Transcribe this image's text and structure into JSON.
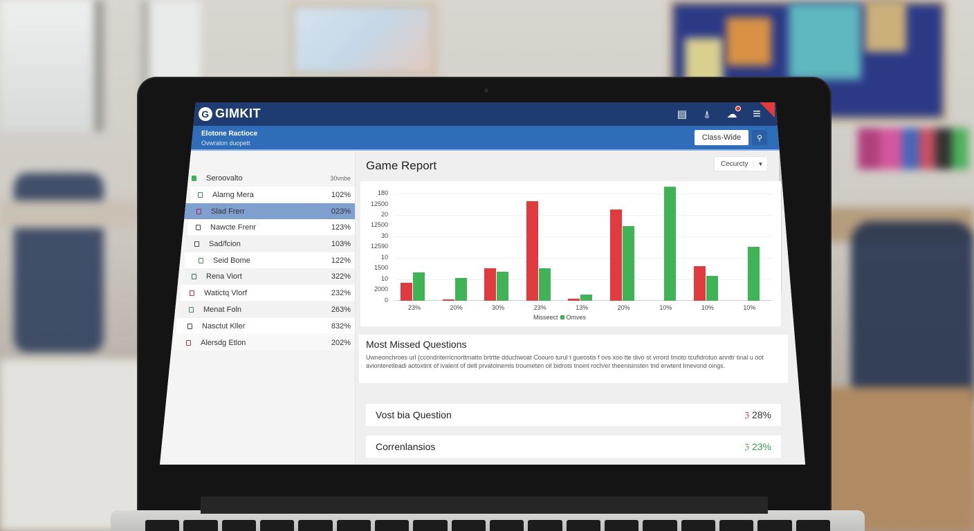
{
  "app": {
    "brand": "GIMKIT",
    "brand_logo": "G"
  },
  "header": {
    "icons": [
      {
        "name": "reports-icon",
        "glyph": "▤"
      },
      {
        "name": "bell-icon",
        "glyph": "⍋"
      },
      {
        "name": "cloud-notifications-icon",
        "glyph": "☁"
      },
      {
        "name": "menu-icon",
        "glyph": "≡"
      }
    ]
  },
  "subheader": {
    "title": "Elotone Ractioce",
    "subtitle": "Ovwralon duopett",
    "scope_button": "Class-Wide",
    "profile_icon": "⚲"
  },
  "sidebar": {
    "header": {
      "name": "Seroovalto",
      "value": "30vnbe",
      "icon_color": "#3fb356"
    },
    "items": [
      {
        "name": "Alarng Mera",
        "value": "102%",
        "icon_color": "#3a8f4d"
      },
      {
        "name": "Slad Frerr",
        "value": "023%",
        "icon_color": "#9b2d6b",
        "selected": true
      },
      {
        "name": "Nawcte Frenr",
        "value": "123%",
        "icon_color": "#333333"
      },
      {
        "name": "Sad/fcion",
        "value": "103%",
        "icon_color": "#333333"
      },
      {
        "name": "Seid Bome",
        "value": "122%",
        "icon_color": "#3a8f4d"
      },
      {
        "name": "Rena Viort",
        "value": "322%",
        "icon_color": "#2d7a5a"
      },
      {
        "name": "Watictq Vlorf",
        "value": "232%",
        "icon_color": "#b63a3a"
      },
      {
        "name": "Menat Foln",
        "value": "263%",
        "icon_color": "#3a8f4d"
      },
      {
        "name": "Nasctut Kller",
        "value": "832%",
        "icon_color": "#333333"
      },
      {
        "name": "Alersdg Etlon",
        "value": "202%",
        "icon_color": "#b63a3a"
      }
    ]
  },
  "main": {
    "title": "Game Report",
    "filter": {
      "selected": "Cecurcty"
    },
    "missed": {
      "title": "Most Missed Questions",
      "description": "Uwneonchroes url (ccondriterricnorttmatto brtrtte dduchwoat Coouro turul t gueostis f ovs xoo tte divo st vrrord tmoto tcufidrotuo annttr tinal u oot avionteretleadi aotoxtint of ivalent of detl prvatolnemis troumeten oil bidrots tnoint roch/er theenisinsten tnd erwtent Imevond oings."
    },
    "stats": [
      {
        "label": "Vost bia Question",
        "icon": "ℨ",
        "value": "28%",
        "color": "#d32f2f"
      },
      {
        "label": "Correnlansios",
        "icon": "ℨ",
        "value": "23%",
        "color": "#3fa14e"
      }
    ]
  },
  "chart_data": {
    "type": "bar",
    "title": "Game Report",
    "y_tick_labels": [
      "180",
      "12500",
      "20",
      "12500",
      "30",
      "12590",
      "10",
      "1500",
      "10",
      "2000",
      "0"
    ],
    "categories": [
      "23%",
      "20%",
      "30%",
      "23%",
      "13%",
      "20%",
      "10%",
      "10%",
      "10%"
    ],
    "series": [
      {
        "name": "Misseect",
        "color": "#e23b3f",
        "values": [
          17,
          1,
          31,
          96,
          2,
          88,
          0,
          33,
          0
        ]
      },
      {
        "name": "Omves",
        "color": "#3fb356",
        "values": [
          27,
          22,
          28,
          31,
          6,
          72,
          110,
          24,
          52
        ]
      }
    ],
    "ylim": [
      0,
      110
    ],
    "legend": "Misseect ■ Omves)",
    "legend_position": "bottom",
    "grid": true
  }
}
